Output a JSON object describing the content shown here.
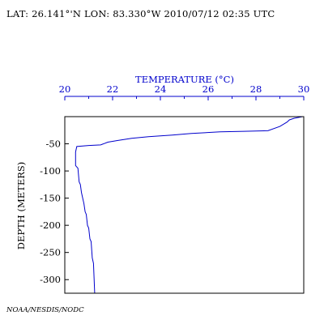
{
  "header": {
    "text": "LAT: 26.141°'N LON: 83.330°W 2010/07/12 02:35 UTC"
  },
  "credit": {
    "text": "NOAA/NESDIS/NODC"
  },
  "chart_data": {
    "type": "line",
    "title": "",
    "xlabel": "TEMPERATURE (°C)",
    "ylabel": "DEPTH (METERS)",
    "xlim": [
      20,
      30
    ],
    "ylim": [
      -325,
      0
    ],
    "x_axis_position": "top",
    "x_ticks": [
      "20",
      "22",
      "24",
      "26",
      "28",
      "30"
    ],
    "y_ticks": [
      "-50",
      "-100",
      "-150",
      "-200",
      "-250",
      "-300"
    ],
    "grid": false,
    "colors": {
      "line": "#0000cc",
      "xaxis": "#0000cc",
      "frame": "#000000"
    },
    "series": [
      {
        "x": [
          29.95,
          29.6,
          29.4,
          29.3,
          29.0,
          28.5,
          27.5,
          26.5,
          25.3,
          24.5,
          23.5,
          22.8,
          22.2,
          21.8,
          21.5,
          21.0,
          20.5,
          20.45,
          20.45,
          20.55,
          20.6,
          20.65,
          20.7,
          20.75,
          20.8,
          20.85,
          20.9,
          20.95,
          21.0,
          21.05,
          21.1,
          21.15,
          21.2,
          21.25
        ],
        "y": [
          0,
          -3,
          -6,
          -10,
          -18,
          -26,
          -27,
          -28,
          -31,
          -34,
          -37,
          -40,
          -44,
          -47,
          -52,
          -53,
          -55,
          -65,
          -90,
          -95,
          -120,
          -125,
          -140,
          -150,
          -160,
          -175,
          -180,
          -200,
          -205,
          -225,
          -230,
          -260,
          -270,
          -325
        ]
      }
    ]
  }
}
